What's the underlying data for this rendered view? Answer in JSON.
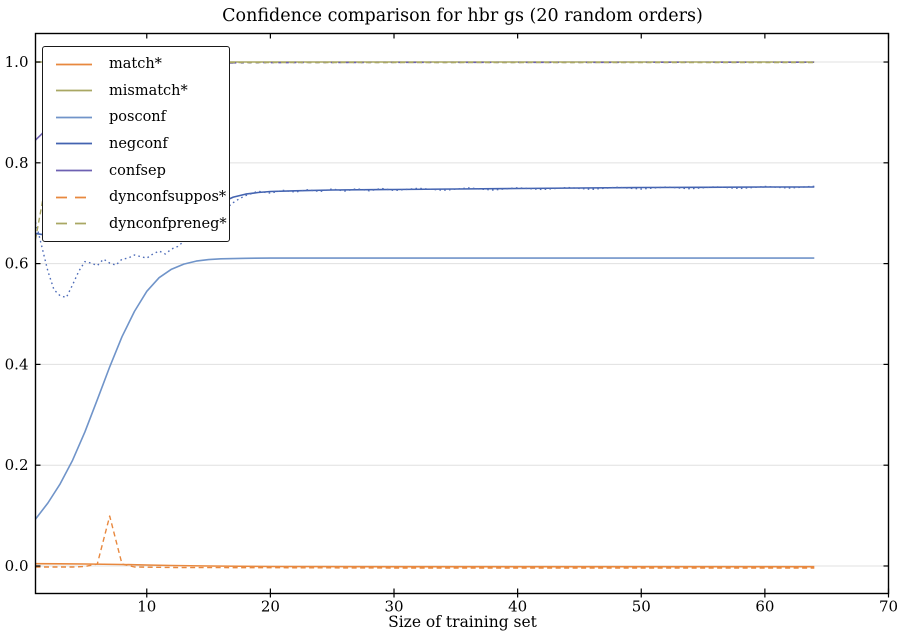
{
  "title": "Confidence comparison for hbr gs (20 random orders)",
  "xlabel": "Size of training set",
  "legend": {
    "items": [
      {
        "label": "match*",
        "color": "#e8883e",
        "style": "solid",
        "dash": ""
      },
      {
        "label": "mismatch*",
        "color": "#a9a763",
        "style": "solid",
        "dash": ""
      },
      {
        "label": "posconf",
        "color": "#7094c9",
        "style": "solid",
        "dash": ""
      },
      {
        "label": "negconf",
        "color": "#4363b0",
        "style": "solid",
        "dash": ""
      },
      {
        "label": "confsep",
        "color": "#6d60b2",
        "style": "solid",
        "dash": ""
      },
      {
        "label": "dynconfsuppos*",
        "color": "#e8883e",
        "style": "dashed",
        "dash": "11,8"
      },
      {
        "label": "dynconfpreneg*",
        "color": "#a9a763",
        "style": "dashed",
        "dash": "11,8"
      }
    ]
  },
  "chart_data": {
    "type": "line",
    "title": "Confidence comparison for hbr gs (20 random orders)",
    "xlabel": "Size of training set",
    "ylabel": "",
    "xlim": [
      1,
      70
    ],
    "ylim": [
      -0.0546,
      1.0566
    ],
    "xticks": [
      10,
      20,
      30,
      40,
      50,
      60,
      70
    ],
    "yticks": [
      0.0,
      0.2,
      0.4,
      0.6,
      0.8,
      1.0
    ],
    "grid": "horizontal",
    "grid_color": "#e0e0e0",
    "frame_color": "#000000",
    "legend_position": "upper-left",
    "x_data_range": [
      1,
      64
    ],
    "series": [
      {
        "name": "match*",
        "color": "#e8883e",
        "style": "solid",
        "width": 1.6,
        "dash": "",
        "points": [
          [
            1,
            0.0045
          ],
          [
            3,
            0.0043
          ],
          [
            5,
            0.004
          ],
          [
            8,
            0.003
          ],
          [
            10,
            0.002
          ],
          [
            12,
            0.001
          ],
          [
            15,
            0.0
          ],
          [
            20,
            -0.001
          ],
          [
            30,
            -0.0015
          ],
          [
            40,
            -0.0015
          ],
          [
            50,
            -0.0015
          ],
          [
            64,
            -0.0015
          ]
        ]
      },
      {
        "name": "mismatch*",
        "color": "#a9a763",
        "style": "solid",
        "width": 1.6,
        "dash": "",
        "points": [
          [
            1,
            1.0
          ],
          [
            64,
            1.0
          ]
        ]
      },
      {
        "name": "posconf",
        "color": "#7094c9",
        "style": "solid",
        "width": 1.6,
        "dash": "",
        "points": [
          [
            1,
            0.093
          ],
          [
            2,
            0.125
          ],
          [
            3,
            0.163
          ],
          [
            4,
            0.21
          ],
          [
            5,
            0.266
          ],
          [
            6,
            0.33
          ],
          [
            7,
            0.395
          ],
          [
            8,
            0.455
          ],
          [
            9,
            0.505
          ],
          [
            10,
            0.545
          ],
          [
            11,
            0.572
          ],
          [
            12,
            0.589
          ],
          [
            13,
            0.599
          ],
          [
            14,
            0.605
          ],
          [
            15,
            0.608
          ],
          [
            16,
            0.6095
          ],
          [
            18,
            0.6105
          ],
          [
            20,
            0.611
          ],
          [
            64,
            0.611
          ]
        ]
      },
      {
        "name": "negconf",
        "color": "#4363b0",
        "style": "solid",
        "width": 1.6,
        "dash": "",
        "points": [
          [
            1,
            0.66
          ],
          [
            2,
            0.656
          ],
          [
            3,
            0.653
          ],
          [
            4,
            0.651
          ],
          [
            5,
            0.65
          ],
          [
            6,
            0.6495
          ],
          [
            7,
            0.65
          ],
          [
            8,
            0.652
          ],
          [
            9,
            0.655
          ],
          [
            10,
            0.659
          ],
          [
            11,
            0.665
          ],
          [
            12,
            0.673
          ],
          [
            13,
            0.684
          ],
          [
            14,
            0.696
          ],
          [
            15,
            0.708
          ],
          [
            16,
            0.721
          ],
          [
            17,
            0.732
          ],
          [
            18,
            0.738
          ],
          [
            19,
            0.741
          ],
          [
            20,
            0.743
          ],
          [
            22,
            0.7445
          ],
          [
            25,
            0.746
          ],
          [
            30,
            0.747
          ],
          [
            35,
            0.748
          ],
          [
            40,
            0.749
          ],
          [
            45,
            0.75
          ],
          [
            50,
            0.751
          ],
          [
            55,
            0.7515
          ],
          [
            60,
            0.752
          ],
          [
            64,
            0.752
          ]
        ]
      },
      {
        "name": "negconf_dotted",
        "color": "#4e6cb8",
        "style": "dotted",
        "width": 1.4,
        "dash": "1.6,3.2",
        "points": [
          [
            1,
            0.682
          ],
          [
            1.3,
            0.655
          ],
          [
            1.6,
            0.625
          ],
          [
            2,
            0.585
          ],
          [
            2.5,
            0.548
          ],
          [
            3,
            0.536
          ],
          [
            3.5,
            0.533
          ],
          [
            4,
            0.558
          ],
          [
            4.5,
            0.585
          ],
          [
            5,
            0.604
          ],
          [
            5.5,
            0.601
          ],
          [
            6,
            0.596
          ],
          [
            6.5,
            0.609
          ],
          [
            7,
            0.601
          ],
          [
            7.5,
            0.597
          ],
          [
            8,
            0.609
          ],
          [
            8.5,
            0.611
          ],
          [
            9,
            0.617
          ],
          [
            9.5,
            0.614
          ],
          [
            10,
            0.611
          ],
          [
            10.5,
            0.619
          ],
          [
            11,
            0.625
          ],
          [
            11.5,
            0.619
          ],
          [
            12,
            0.629
          ],
          [
            12.5,
            0.634
          ],
          [
            13,
            0.644
          ],
          [
            13.5,
            0.657
          ],
          [
            14,
            0.667
          ],
          [
            14.5,
            0.675
          ],
          [
            15,
            0.683
          ],
          [
            15.5,
            0.692
          ],
          [
            16,
            0.701
          ],
          [
            16.5,
            0.711
          ],
          [
            17,
            0.721
          ],
          [
            17.5,
            0.729
          ],
          [
            18,
            0.735
          ],
          [
            19,
            0.7435
          ],
          [
            20,
            0.74
          ],
          [
            21,
            0.7455
          ],
          [
            22,
            0.742
          ],
          [
            23,
            0.7465
          ],
          [
            24,
            0.743
          ],
          [
            25,
            0.748
          ],
          [
            26,
            0.744
          ],
          [
            27,
            0.7485
          ],
          [
            28,
            0.7445
          ],
          [
            29,
            0.749
          ],
          [
            30,
            0.745
          ],
          [
            32,
            0.7495
          ],
          [
            34,
            0.7455
          ],
          [
            36,
            0.75
          ],
          [
            38,
            0.746
          ],
          [
            40,
            0.7505
          ],
          [
            42,
            0.747
          ],
          [
            44,
            0.751
          ],
          [
            46,
            0.7475
          ],
          [
            48,
            0.7515
          ],
          [
            50,
            0.748
          ],
          [
            52,
            0.752
          ],
          [
            54,
            0.7485
          ],
          [
            56,
            0.7525
          ],
          [
            58,
            0.749
          ],
          [
            60,
            0.753
          ],
          [
            62,
            0.75
          ],
          [
            64,
            0.7535
          ]
        ]
      },
      {
        "name": "confsep",
        "color": "#6d60b2",
        "style": "solid",
        "width": 1.6,
        "dash": "",
        "points": [
          [
            1,
            0.845
          ],
          [
            1.5,
            0.857
          ],
          [
            2,
            0.872
          ],
          [
            2.5,
            0.886
          ],
          [
            3,
            0.9
          ],
          [
            4,
            0.925
          ],
          [
            5,
            0.945
          ],
          [
            6,
            0.96
          ],
          [
            7,
            0.971
          ],
          [
            8,
            0.979
          ],
          [
            9,
            0.985
          ],
          [
            10,
            0.989
          ],
          [
            11,
            0.992
          ],
          [
            12,
            0.994
          ],
          [
            13,
            0.9955
          ],
          [
            14,
            0.9965
          ],
          [
            15,
            0.9972
          ],
          [
            16,
            0.9978
          ],
          [
            17,
            0.9982
          ]
        ]
      },
      {
        "name": "confsep_dotted",
        "color": "#6d60b2",
        "style": "dotted",
        "width": 1.5,
        "dash": "3,4.5",
        "points": [
          [
            17,
            0.9982
          ],
          [
            20,
            0.9988
          ],
          [
            25,
            0.999
          ],
          [
            30,
            0.9992
          ],
          [
            40,
            0.9993
          ],
          [
            50,
            0.9994
          ],
          [
            64,
            0.9995
          ]
        ]
      },
      {
        "name": "dynconfsuppos*",
        "color": "#e8883e",
        "style": "dashed",
        "width": 1.4,
        "dash": "5,3.5",
        "points": [
          [
            1,
            -0.002
          ],
          [
            4,
            -0.002
          ],
          [
            5,
            -0.001
          ],
          [
            6,
            0.004
          ],
          [
            7,
            0.099
          ],
          [
            8,
            0.004
          ],
          [
            9,
            -0.002
          ],
          [
            12,
            -0.003
          ],
          [
            20,
            -0.0035
          ],
          [
            30,
            -0.004
          ],
          [
            40,
            -0.004
          ],
          [
            64,
            -0.004
          ]
        ]
      },
      {
        "name": "dynconfpreneg*",
        "color": "#a9a763",
        "style": "dashed",
        "width": 1.4,
        "dash": "5,3.5",
        "points": [
          [
            1,
            0.648
          ],
          [
            1.5,
            0.715
          ],
          [
            2,
            0.785
          ],
          [
            2.5,
            0.845
          ],
          [
            3,
            0.895
          ],
          [
            3.5,
            0.93
          ],
          [
            4,
            0.953
          ],
          [
            5,
            0.978
          ],
          [
            6,
            0.989
          ],
          [
            7,
            0.994
          ],
          [
            8,
            0.997
          ],
          [
            10,
            0.9985
          ],
          [
            15,
            0.999
          ],
          [
            64,
            0.999
          ]
        ]
      }
    ]
  },
  "axis": {
    "x_tick_labels": [
      "10",
      "20",
      "30",
      "40",
      "50",
      "60",
      "70"
    ],
    "y_tick_labels": [
      "0.0",
      "0.2",
      "0.4",
      "0.6",
      "0.8",
      "1.0"
    ]
  }
}
